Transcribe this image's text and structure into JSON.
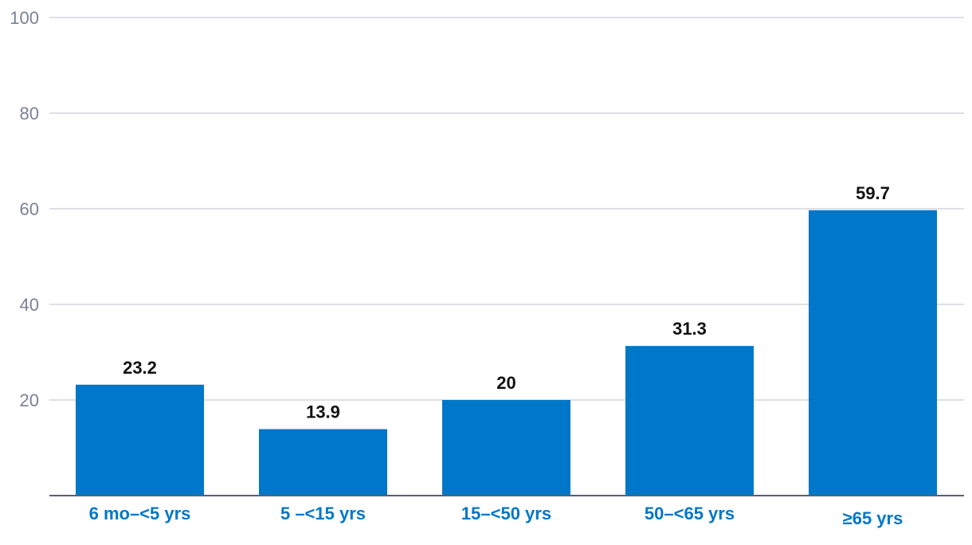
{
  "chart_data": {
    "type": "bar",
    "title": "",
    "xlabel": "",
    "ylabel": "",
    "categories": [
      "6 mo–<5 yrs",
      "5 –<15 yrs",
      "15–<50 yrs",
      "50–<65 yrs",
      "≥65 yrs"
    ],
    "values": [
      23.2,
      13.9,
      20,
      31.3,
      59.7
    ],
    "data_labels": [
      "23.2",
      "13.9",
      "20",
      "31.3",
      "59.7"
    ],
    "ylim": [
      0,
      100
    ],
    "yticks": [
      20,
      40,
      60,
      80,
      100
    ],
    "ytick_labels": [
      "20",
      "40",
      "60",
      "80",
      "100"
    ],
    "grid": true,
    "legend": "none",
    "colors": {
      "bar": "#0077c8",
      "category_label": "#0077c8",
      "tick_label": "#7a8194",
      "gridline": "#d3d6de",
      "axis": "#5a6072",
      "data_label": "#111111"
    }
  }
}
